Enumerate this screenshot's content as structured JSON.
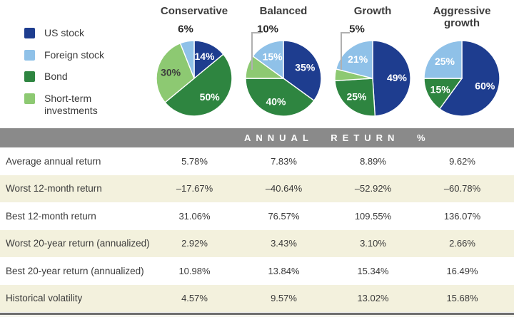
{
  "legend": {
    "items": [
      {
        "label": "US stock",
        "color": "#1e3d8f"
      },
      {
        "label": "Foreign stock",
        "color": "#8fc1e8"
      },
      {
        "label": "Bond",
        "color": "#2e8540"
      },
      {
        "label": "Short-term investments",
        "color": "#8dc972"
      }
    ]
  },
  "chart_data": {
    "type": "pie",
    "legend_position": "left",
    "start_angle": "12-oclock",
    "direction": "clockwise",
    "pies": [
      {
        "title": "Conservative",
        "slices": [
          {
            "label": "US stock",
            "value": 14,
            "color": "#1e3d8f"
          },
          {
            "label": "Bond",
            "value": 50,
            "color": "#2e8540"
          },
          {
            "label": "Short-term investments",
            "value": 30,
            "color": "#8dc972"
          },
          {
            "label": "Foreign stock",
            "value": 6,
            "color": "#8fc1e8",
            "label_placement": "outside",
            "callout": false
          }
        ]
      },
      {
        "title": "Balanced",
        "slices": [
          {
            "label": "US stock",
            "value": 35,
            "color": "#1e3d8f"
          },
          {
            "label": "Bond",
            "value": 40,
            "color": "#2e8540"
          },
          {
            "label": "Short-term investments",
            "value": 10,
            "color": "#8dc972",
            "label_placement": "outside",
            "callout": true
          },
          {
            "label": "Foreign stock",
            "value": 15,
            "color": "#8fc1e8"
          }
        ]
      },
      {
        "title": "Growth",
        "slices": [
          {
            "label": "US stock",
            "value": 49,
            "color": "#1e3d8f"
          },
          {
            "label": "Bond",
            "value": 25,
            "color": "#2e8540"
          },
          {
            "label": "Short-term investments",
            "value": 5,
            "color": "#8dc972",
            "label_placement": "outside",
            "callout": true
          },
          {
            "label": "Foreign stock",
            "value": 21,
            "color": "#8fc1e8"
          }
        ]
      },
      {
        "title": "Aggressive growth",
        "slices": [
          {
            "label": "US stock",
            "value": 60,
            "color": "#1e3d8f"
          },
          {
            "label": "Bond",
            "value": 15,
            "color": "#2e8540"
          },
          {
            "label": "Foreign stock",
            "value": 25,
            "color": "#8fc1e8"
          }
        ]
      }
    ]
  },
  "table": {
    "header": "ANNUAL RETURN %",
    "columns": [
      "Conservative",
      "Balanced",
      "Growth",
      "Aggressive growth"
    ],
    "rows": [
      {
        "label": "Average annual return",
        "values": [
          "5.78%",
          "7.83%",
          "8.89%",
          "9.62%"
        ]
      },
      {
        "label": "Worst 12-month return",
        "values": [
          "–17.67%",
          "–40.64%",
          "–52.92%",
          "–60.78%"
        ]
      },
      {
        "label": "Best 12-month return",
        "values": [
          "31.06%",
          "76.57%",
          "109.55%",
          "136.07%"
        ]
      },
      {
        "label": "Worst 20-year return (annualized)",
        "values": [
          "2.92%",
          "3.43%",
          "3.10%",
          "2.66%"
        ]
      },
      {
        "label": "Best 20-year return (annualized)",
        "values": [
          "10.98%",
          "13.84%",
          "15.34%",
          "16.49%"
        ]
      },
      {
        "label": "Historical volatility",
        "values": [
          "4.57%",
          "9.57%",
          "13.02%",
          "15.68%"
        ]
      }
    ]
  }
}
